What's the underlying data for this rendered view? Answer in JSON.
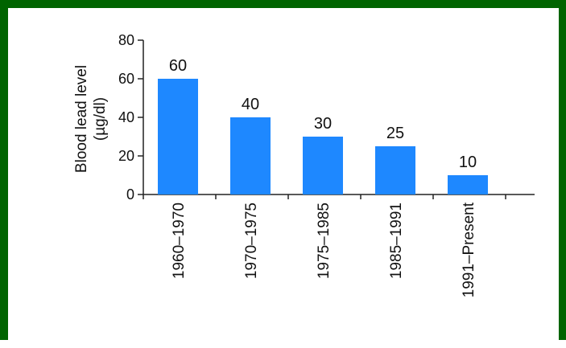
{
  "colors": {
    "frame": "#006400",
    "bar": "#1e88ff",
    "axis": "#222222"
  },
  "chart_data": {
    "type": "bar",
    "categories": [
      "1960–1970",
      "1970–1975",
      "1975–1985",
      "1985–1991",
      "1991–Present"
    ],
    "values": [
      60,
      40,
      30,
      25,
      10
    ],
    "data_labels": [
      "60",
      "40",
      "30",
      "25",
      "10"
    ],
    "ylabel_line1": "Blood lead level",
    "ylabel_line2": "(µg/dl)",
    "ylim": [
      0,
      80
    ],
    "yticks": [
      "0",
      "20",
      "40",
      "60",
      "80"
    ],
    "grid": false,
    "legend": "none"
  }
}
